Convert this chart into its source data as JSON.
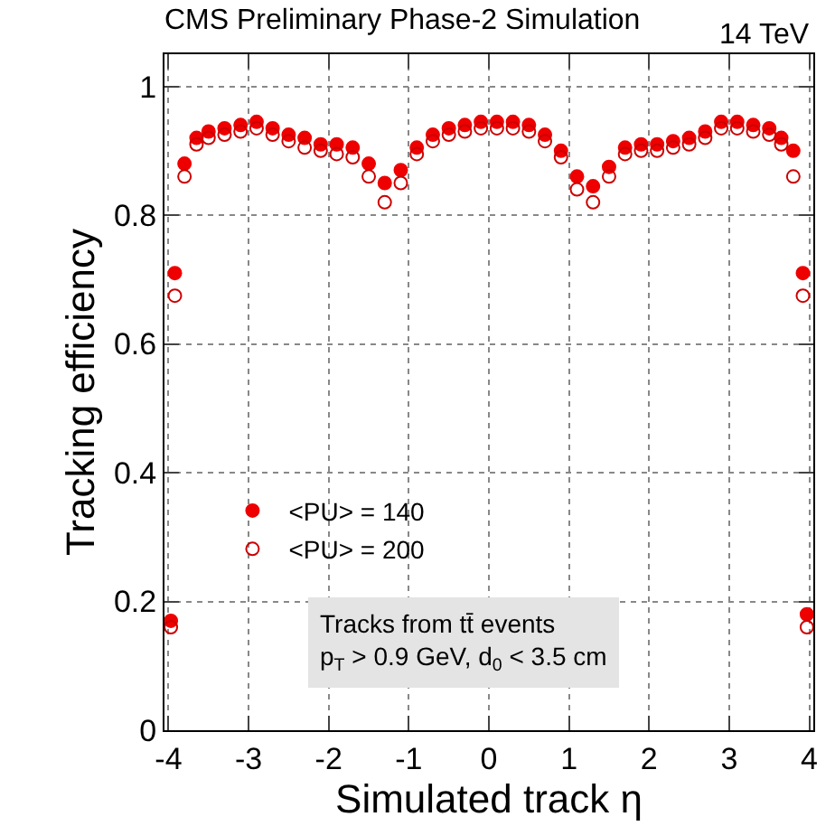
{
  "chart_data": {
    "type": "scatter",
    "title": "CMS Preliminary Phase-2 Simulation",
    "subtitle": "14 TeV",
    "xlabel": "Simulated track η",
    "ylabel": "Tracking efficiency",
    "annotations": [
      "Tracks from tt̄ events\np$_{T}$ > 0.9 GeV, d$_{0}$ < 3.5 cm"
    ],
    "x": [
      -3.97,
      -3.92,
      -3.8,
      -3.65,
      -3.5,
      -3.3,
      -3.1,
      -2.9,
      -2.7,
      -2.5,
      -2.3,
      -2.1,
      -1.9,
      -1.7,
      -1.5,
      -1.3,
      -1.1,
      -0.9,
      -0.7,
      -0.5,
      -0.3,
      -0.1,
      0.1,
      0.3,
      0.5,
      0.7,
      0.9,
      1.1,
      1.3,
      1.5,
      1.7,
      1.9,
      2.1,
      2.3,
      2.5,
      2.7,
      2.9,
      3.1,
      3.3,
      3.5,
      3.65,
      3.8,
      3.92,
      3.97
    ],
    "series": [
      {
        "name": "<PU> = 140",
        "color": "#ee0000",
        "marker": "circle",
        "values": [
          0.17,
          0.71,
          0.88,
          0.92,
          0.93,
          0.935,
          0.94,
          0.945,
          0.935,
          0.925,
          0.92,
          0.91,
          0.91,
          0.905,
          0.88,
          0.85,
          0.87,
          0.905,
          0.925,
          0.935,
          0.94,
          0.945,
          0.945,
          0.945,
          0.94,
          0.925,
          0.9,
          0.86,
          0.845,
          0.875,
          0.905,
          0.91,
          0.91,
          0.915,
          0.92,
          0.93,
          0.945,
          0.945,
          0.94,
          0.935,
          0.92,
          0.9,
          0.71,
          0.18
        ]
      },
      {
        "name": "<PU> = 200",
        "color": "#cc0000",
        "marker": "circle-open",
        "values": [
          0.16,
          0.675,
          0.86,
          0.91,
          0.92,
          0.925,
          0.93,
          0.935,
          0.925,
          0.915,
          0.905,
          0.9,
          0.895,
          0.89,
          0.86,
          0.82,
          0.85,
          0.895,
          0.915,
          0.925,
          0.93,
          0.935,
          0.935,
          0.935,
          0.93,
          0.915,
          0.89,
          0.84,
          0.82,
          0.86,
          0.895,
          0.9,
          0.9,
          0.905,
          0.91,
          0.92,
          0.935,
          0.935,
          0.93,
          0.925,
          0.91,
          0.86,
          0.675,
          0.16
        ]
      }
    ],
    "xlim": [
      -4.05,
      4.05
    ],
    "ylim": [
      0,
      1.05
    ],
    "xticks": [
      -4,
      -3,
      -2,
      -1,
      0,
      1,
      2,
      3,
      4
    ],
    "yticks": [
      0,
      0.2,
      0.4,
      0.6,
      0.8,
      1
    ],
    "grid": true,
    "legend": "bottom left"
  }
}
